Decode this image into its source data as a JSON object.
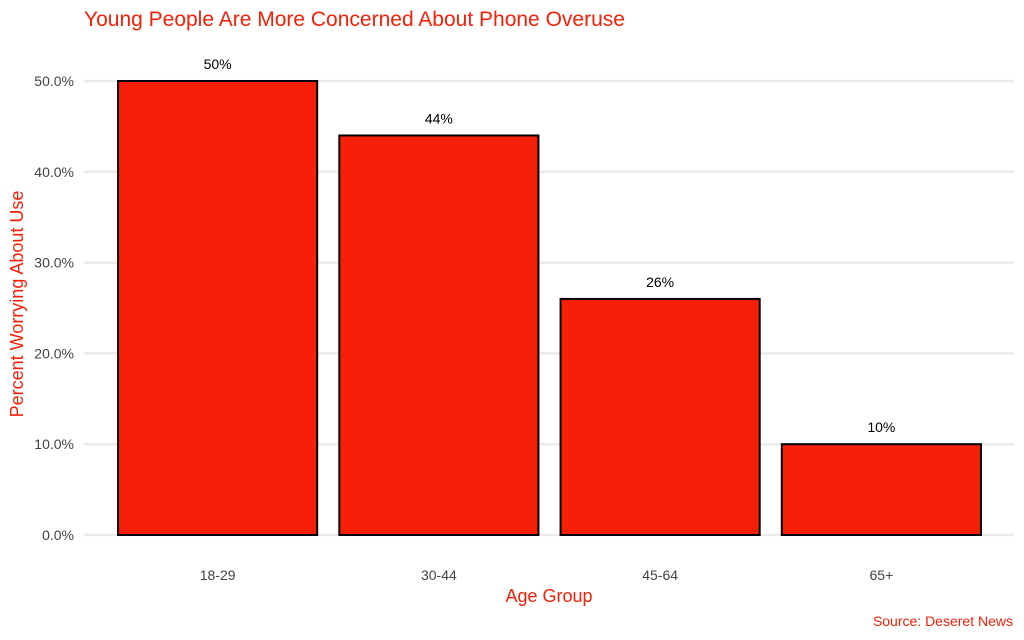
{
  "colors": {
    "accent": "#f62009",
    "bar_fill": "#f62009",
    "bar_stroke": "#000000",
    "grid": "#ebebeb",
    "tick_text": "#444444",
    "data_label_text": "#000000"
  },
  "caption": "Source: Deseret News",
  "chart_data": {
    "type": "bar",
    "title": "Young People Are More Concerned About Phone Overuse",
    "xlabel": "Age Group",
    "ylabel": "Percent Worrying About Use",
    "categories": [
      "18-29",
      "30-44",
      "45-64",
      "65+"
    ],
    "values": [
      50,
      44,
      26,
      10
    ],
    "data_labels": [
      "50%",
      "44%",
      "26%",
      "10%"
    ],
    "ylim": [
      0,
      50
    ],
    "y_ticks": [
      0,
      10,
      20,
      30,
      40,
      50
    ],
    "y_tick_labels": [
      "0.0%",
      "10.0%",
      "20.0%",
      "30.0%",
      "40.0%",
      "50.0%"
    ],
    "grid": "horizontal",
    "legend": "none"
  }
}
